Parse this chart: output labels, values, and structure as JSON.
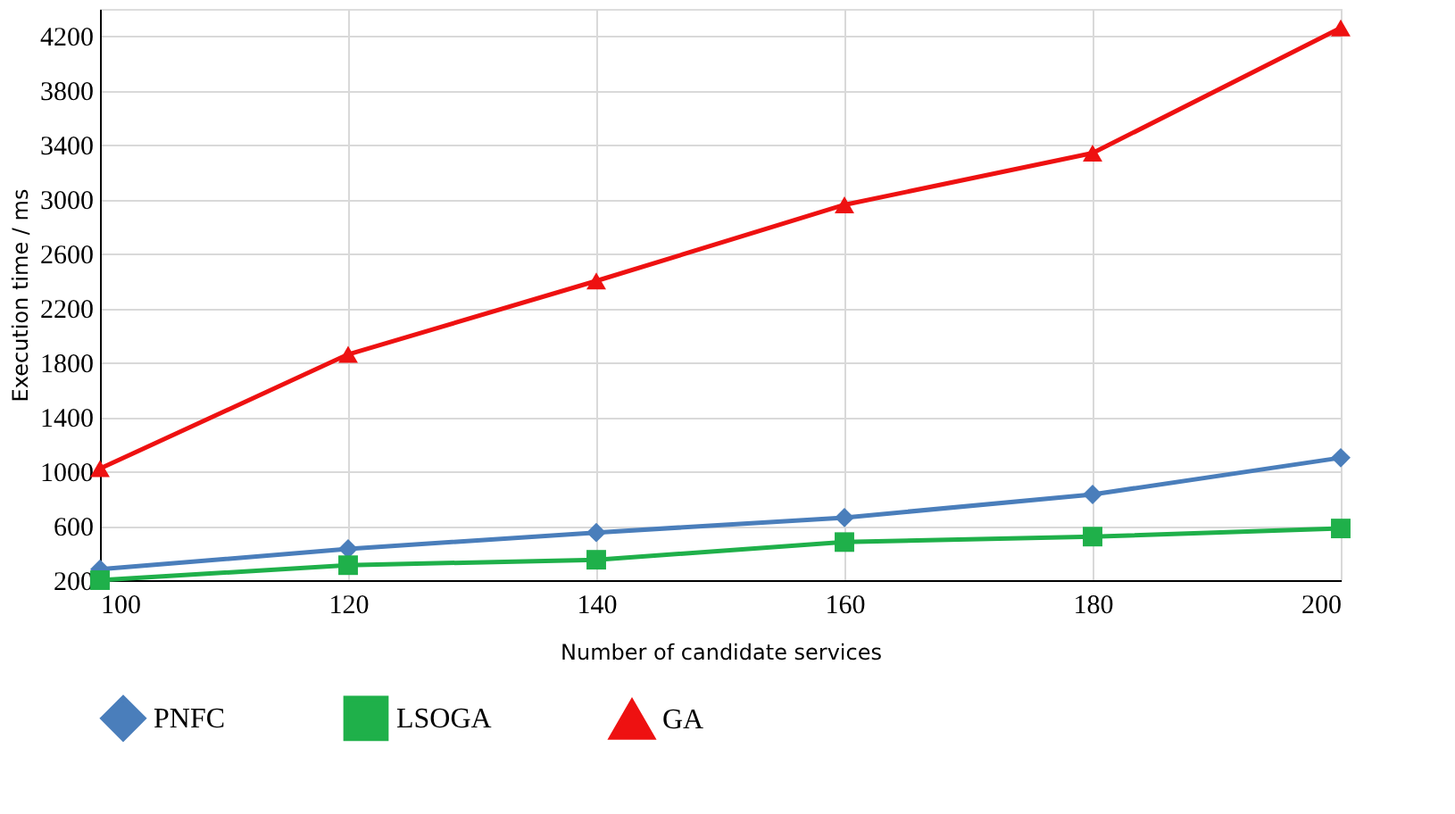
{
  "chart_data": {
    "type": "line",
    "xlabel": "Number of candidate services",
    "ylabel": "Execution time / ms",
    "x": [
      100,
      120,
      140,
      160,
      180,
      200
    ],
    "series": [
      {
        "name": "PNFC",
        "color": "#4a7ebb",
        "marker": "diamond",
        "values": [
          280,
          430,
          550,
          660,
          830,
          1100
        ]
      },
      {
        "name": "LSOGA",
        "color": "#1fb04a",
        "marker": "square",
        "values": [
          200,
          310,
          350,
          480,
          520,
          580
        ]
      },
      {
        "name": "GA",
        "color": "#ee1111",
        "marker": "triangle",
        "values": [
          1020,
          1860,
          2400,
          2960,
          3340,
          4260
        ]
      }
    ],
    "xlim": [
      100,
      200
    ],
    "xticks": [
      100,
      120,
      140,
      160,
      180,
      200
    ],
    "ylim": [
      200,
      4400
    ],
    "yticks": [
      200,
      600,
      1000,
      1400,
      1800,
      2200,
      2600,
      3000,
      3400,
      3800,
      4200
    ],
    "grid": true,
    "legend": "bottom",
    "line_style": "solid"
  }
}
